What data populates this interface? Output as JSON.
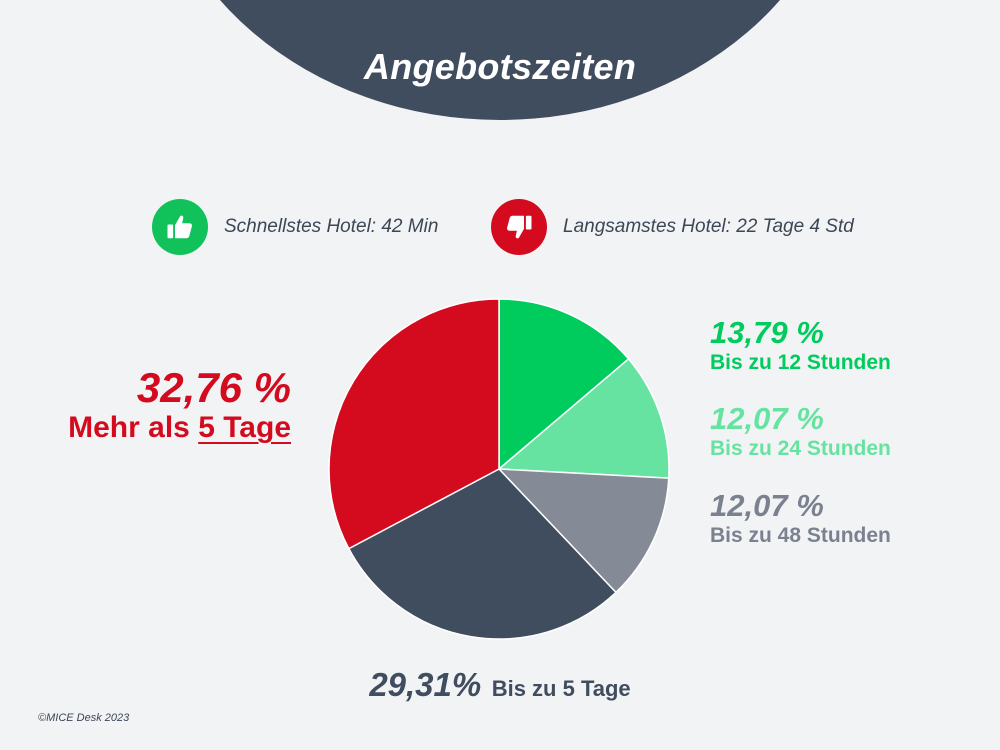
{
  "title": "Angebotszeiten",
  "stats": {
    "fastest": {
      "text": "Schnellstes Hotel: 42 Min",
      "icon": "thumbs-up-icon",
      "color": "#11c25a"
    },
    "slowest": {
      "text": "Langsamstes Hotel: 22 Tage 4 Std",
      "icon": "thumbs-down-icon",
      "color": "#d40b1f"
    }
  },
  "labels": {
    "h12": {
      "pct": "13,79 %",
      "desc": "Bis zu 12 Stunden"
    },
    "h24": {
      "pct": "12,07 %",
      "desc": "Bis zu 24 Stunden"
    },
    "h48": {
      "pct": "12,07 %",
      "desc": "Bis zu 48 Stunden"
    },
    "d5plus": {
      "pct": "32,76 %",
      "desc_prefix": "Mehr als ",
      "desc_underlined": "5 Tage"
    },
    "d5": {
      "pct": "29,31%",
      "desc": "Bis zu 5 Tage"
    }
  },
  "copyright": "©MICE Desk 2023",
  "colors": {
    "header": "#404d5e",
    "background": "#f2f3f5"
  },
  "chart_data": {
    "type": "pie",
    "title": "Angebotszeiten",
    "start_angle_deg": 0,
    "direction": "clockwise",
    "slices": [
      {
        "label": "Bis zu 12 Stunden",
        "value": 13.79,
        "color": "#00cc5e"
      },
      {
        "label": "Bis zu 24 Stunden",
        "value": 12.07,
        "color": "#66e3a1"
      },
      {
        "label": "Bis zu 48 Stunden",
        "value": 12.07,
        "color": "#858a97"
      },
      {
        "label": "Bis zu 5 Tage",
        "value": 29.31,
        "color": "#404d5e"
      },
      {
        "label": "Mehr als 5 Tage",
        "value": 32.76,
        "color": "#d40b1f"
      }
    ]
  }
}
